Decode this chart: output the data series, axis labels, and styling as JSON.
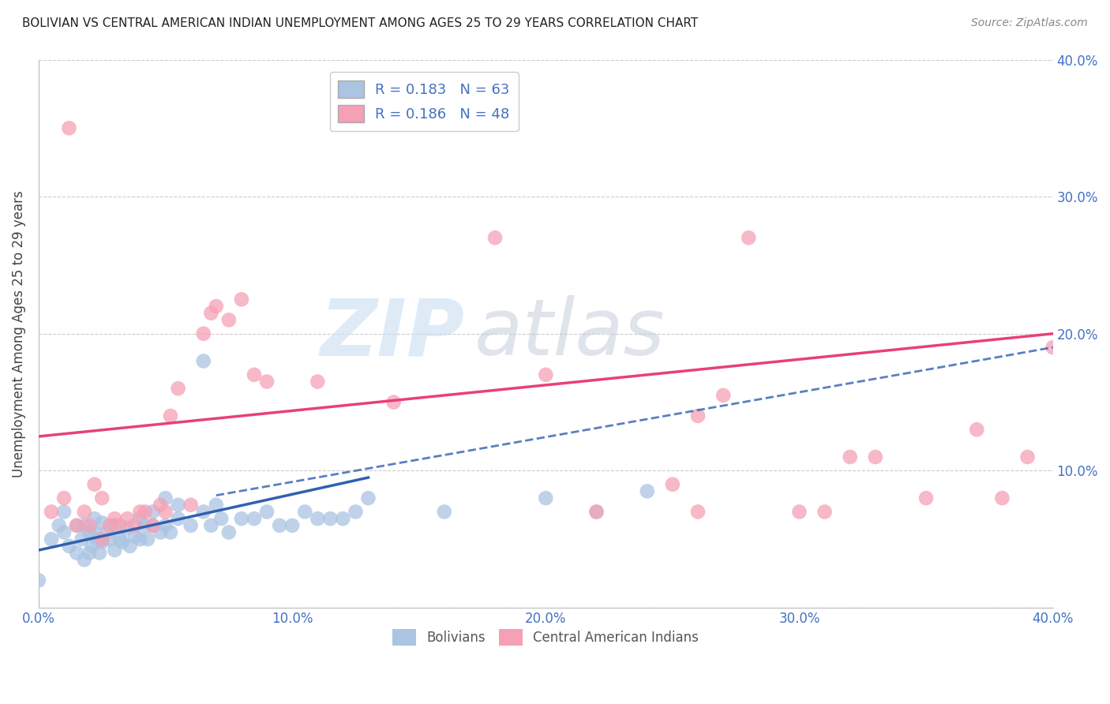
{
  "title": "BOLIVIAN VS CENTRAL AMERICAN INDIAN UNEMPLOYMENT AMONG AGES 25 TO 29 YEARS CORRELATION CHART",
  "source": "Source: ZipAtlas.com",
  "ylabel": "Unemployment Among Ages 25 to 29 years",
  "xlim": [
    0.0,
    0.4
  ],
  "ylim": [
    0.0,
    0.4
  ],
  "xticks": [
    0.0,
    0.1,
    0.2,
    0.3,
    0.4
  ],
  "yticks": [
    0.0,
    0.1,
    0.2,
    0.3,
    0.4
  ],
  "xticklabels": [
    "0.0%",
    "10.0%",
    "20.0%",
    "30.0%",
    "40.0%"
  ],
  "right_yticklabels": [
    "",
    "10.0%",
    "20.0%",
    "30.0%",
    "40.0%"
  ],
  "bolivians_R": 0.183,
  "bolivians_N": 63,
  "central_american_R": 0.186,
  "central_american_N": 48,
  "bolivian_color": "#aac4e2",
  "central_american_color": "#f5a0b5",
  "bolivian_line_color": "#3060b0",
  "central_american_line_color": "#e8407a",
  "background_color": "#ffffff",
  "grid_color": "#cccccc",
  "title_color": "#222222",
  "axis_label_color": "#444444",
  "tick_color": "#4472c4",
  "watermark_zip": "ZIP",
  "watermark_atlas": "atlas",
  "bolivians_x": [
    0.0,
    0.005,
    0.008,
    0.01,
    0.01,
    0.012,
    0.015,
    0.015,
    0.017,
    0.018,
    0.018,
    0.02,
    0.02,
    0.021,
    0.022,
    0.022,
    0.023,
    0.024,
    0.025,
    0.025,
    0.027,
    0.028,
    0.03,
    0.03,
    0.032,
    0.033,
    0.035,
    0.036,
    0.038,
    0.04,
    0.04,
    0.042,
    0.043,
    0.045,
    0.045,
    0.048,
    0.05,
    0.05,
    0.052,
    0.055,
    0.055,
    0.06,
    0.065,
    0.065,
    0.068,
    0.07,
    0.072,
    0.075,
    0.08,
    0.085,
    0.09,
    0.095,
    0.1,
    0.105,
    0.11,
    0.115,
    0.12,
    0.125,
    0.13,
    0.16,
    0.2,
    0.22,
    0.24
  ],
  "bolivians_y": [
    0.02,
    0.05,
    0.06,
    0.055,
    0.07,
    0.045,
    0.04,
    0.06,
    0.05,
    0.035,
    0.06,
    0.04,
    0.055,
    0.045,
    0.055,
    0.065,
    0.05,
    0.04,
    0.048,
    0.062,
    0.055,
    0.05,
    0.042,
    0.06,
    0.05,
    0.048,
    0.058,
    0.045,
    0.052,
    0.05,
    0.065,
    0.06,
    0.05,
    0.06,
    0.07,
    0.055,
    0.06,
    0.08,
    0.055,
    0.065,
    0.075,
    0.06,
    0.07,
    0.18,
    0.06,
    0.075,
    0.065,
    0.055,
    0.065,
    0.065,
    0.07,
    0.06,
    0.06,
    0.07,
    0.065,
    0.065,
    0.065,
    0.07,
    0.08,
    0.07,
    0.08,
    0.07,
    0.085
  ],
  "bolivian_line_x": [
    0.0,
    0.13
  ],
  "bolivian_line_y": [
    0.042,
    0.095
  ],
  "dashed_line_x": [
    0.07,
    0.4
  ],
  "dashed_line_y": [
    0.082,
    0.19
  ],
  "pink_line_x": [
    0.0,
    0.4
  ],
  "pink_line_y": [
    0.125,
    0.2
  ],
  "central_americans_x": [
    0.005,
    0.01,
    0.012,
    0.015,
    0.018,
    0.02,
    0.022,
    0.025,
    0.025,
    0.028,
    0.03,
    0.032,
    0.035,
    0.038,
    0.04,
    0.042,
    0.045,
    0.048,
    0.05,
    0.052,
    0.055,
    0.06,
    0.065,
    0.068,
    0.07,
    0.075,
    0.08,
    0.085,
    0.09,
    0.11,
    0.14,
    0.18,
    0.2,
    0.22,
    0.26,
    0.28,
    0.3,
    0.32,
    0.35,
    0.37,
    0.38,
    0.39,
    0.31,
    0.33,
    0.25,
    0.27,
    0.26,
    0.4
  ],
  "central_americans_y": [
    0.07,
    0.08,
    0.35,
    0.06,
    0.07,
    0.06,
    0.09,
    0.05,
    0.08,
    0.06,
    0.065,
    0.06,
    0.065,
    0.06,
    0.07,
    0.07,
    0.06,
    0.075,
    0.07,
    0.14,
    0.16,
    0.075,
    0.2,
    0.215,
    0.22,
    0.21,
    0.225,
    0.17,
    0.165,
    0.165,
    0.15,
    0.27,
    0.17,
    0.07,
    0.14,
    0.27,
    0.07,
    0.11,
    0.08,
    0.13,
    0.08,
    0.11,
    0.07,
    0.11,
    0.09,
    0.155,
    0.07,
    0.19
  ]
}
